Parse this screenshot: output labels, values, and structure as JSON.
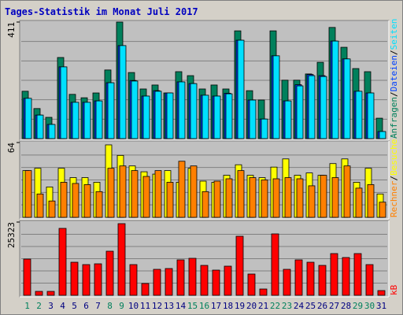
{
  "chart_data": {
    "type": "bar",
    "title": "Tages-Statistik im Monat Juli 2017",
    "separator": "/",
    "categories": [
      "1",
      "2",
      "3",
      "4",
      "5",
      "6",
      "7",
      "8",
      "9",
      "10",
      "11",
      "12",
      "13",
      "14",
      "15",
      "16",
      "17",
      "18",
      "19",
      "20",
      "21",
      "22",
      "23",
      "24",
      "25",
      "26",
      "27",
      "28",
      "29",
      "30",
      "31"
    ],
    "category_colors": [
      "#00805c",
      "#00805c",
      "#000080",
      "#000080",
      "#000080",
      "#000080",
      "#000080",
      "#00805c",
      "#00805c",
      "#000080",
      "#000080",
      "#000080",
      "#000080",
      "#000080",
      "#00805c",
      "#00805c",
      "#000080",
      "#000080",
      "#000080",
      "#000080",
      "#000080",
      "#00805c",
      "#00805c",
      "#000080",
      "#000080",
      "#000080",
      "#000080",
      "#000080",
      "#00805c",
      "#00805c",
      "#000080"
    ],
    "panels": [
      {
        "ylim": [
          0,
          411
        ],
        "yticks": [
          411
        ],
        "series": [
          {
            "name": "Anfragen",
            "color": "#00805c",
            "values": [
              167,
              106,
              75,
              286,
              156,
              144,
              161,
              242,
              411,
              233,
              175,
              189,
              161,
              236,
              222,
              175,
              189,
              175,
              380,
              169,
              136,
              380,
              206,
              206,
              228,
              269,
              392,
              322,
              247,
              236,
              72
            ]
          },
          {
            "name": "Dateien",
            "color": "#0040ff",
            "values": [
              142,
              83,
              50,
              253,
              128,
              128,
              133,
              197,
              328,
              205,
              150,
              169,
              161,
              200,
              194,
              153,
              150,
              160,
              347,
              136,
              69,
              292,
              133,
              190,
              226,
              222,
              344,
              281,
              167,
              161,
              25
            ]
          },
          {
            "name": "Seiten",
            "color": "#00e0ff",
            "values": [
              142,
              83,
              50,
              253,
              128,
              128,
              133,
              197,
              328,
              203,
              150,
              167,
              161,
              200,
              194,
              153,
              150,
              158,
              347,
              136,
              69,
              292,
              133,
              186,
              222,
              219,
              344,
              281,
              167,
              161,
              25
            ]
          }
        ]
      },
      {
        "ylim": [
          0,
          64
        ],
        "yticks": [
          64
        ],
        "series": [
          {
            "name": "Besuche",
            "color": "#ffff00",
            "values": [
              40,
              42,
              26,
              42,
              34,
              34,
              30,
              62,
              53,
              44,
              39,
              37,
              40,
              30,
              42,
              31,
              30,
              36,
              45,
              36,
              34,
              43,
              50,
              36,
              38,
              36,
              46,
              50,
              30,
              42,
              20
            ]
          },
          {
            "name": "Rechner",
            "color": "#ff8000",
            "values": [
              40,
              20,
              14,
              30,
              29,
              28,
              22,
              42,
              44,
              40,
              35,
              40,
              30,
              48,
              44,
              22,
              31,
              33,
              40,
              34,
              32,
              33,
              34,
              33,
              27,
              36,
              34,
              44,
              25,
              28,
              13
            ]
          }
        ]
      },
      {
        "ylim": [
          0,
          25323
        ],
        "yticks": [
          25323
        ],
        "series": [
          {
            "name": "kB",
            "color": "#ff0000",
            "values": [
              12525,
              1361,
              1361,
              23145,
              11436,
              10619,
              10892,
              15248,
              24779,
              10619,
              4084,
              8985,
              9258,
              12253,
              12797,
              10347,
              8713,
              10075,
              20422,
              7352,
              2178,
              21239,
              8985,
              12253,
              11436,
              10347,
              14431,
              13070,
              14431,
              10619,
              1634
            ]
          }
        ]
      }
    ]
  }
}
